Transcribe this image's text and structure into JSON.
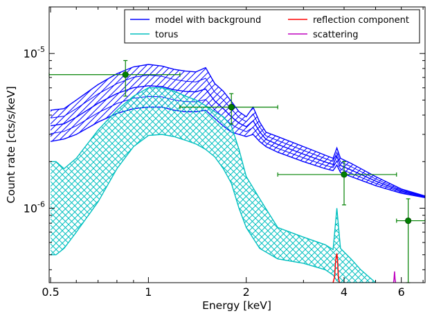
{
  "chart_data": {
    "type": "line",
    "xlabel": "Energy [keV]",
    "ylabel": "Count rate [cts/s/keV]",
    "xscale": "log",
    "yscale": "log",
    "xlim": [
      0.495,
      7.1
    ],
    "ylim": [
      3.3e-07,
      2e-05
    ],
    "x_ticks": [
      {
        "value": 0.5,
        "label": "0.5"
      },
      {
        "value": 1,
        "label": "1"
      },
      {
        "value": 2,
        "label": "2"
      },
      {
        "value": 4,
        "label": "4"
      },
      {
        "value": 6,
        "label": "6"
      }
    ],
    "y_ticks": [
      {
        "value": 1e-06,
        "base": "10",
        "exp": "-6"
      },
      {
        "value": 1e-05,
        "base": "10",
        "exp": "-5"
      }
    ],
    "legend": {
      "position": "top-right",
      "columns": 2,
      "entries": [
        {
          "label": "model with background",
          "color": "#0000ff"
        },
        {
          "label": "reflection component",
          "color": "#ff0000"
        },
        {
          "label": "torus",
          "color": "#00bfbf"
        },
        {
          "label": "scattering",
          "color": "#bf00bf"
        }
      ]
    },
    "series": [
      {
        "name": "model with background",
        "color": "#0000ff",
        "band": {
          "x": [
            0.5,
            0.55,
            0.6,
            0.7,
            0.8,
            0.9,
            1.0,
            1.1,
            1.2,
            1.3,
            1.4,
            1.5,
            1.6,
            1.7,
            1.8,
            1.9,
            2.0,
            2.1,
            2.2,
            2.3,
            2.5,
            3.0,
            3.5,
            3.7,
            3.8,
            3.9,
            4.2,
            5.0,
            6.0,
            7.1
          ],
          "upper": [
            4.3e-06,
            4.4e-06,
            5e-06,
            6.3e-06,
            7.4e-06,
            8.2e-06,
            8.5e-06,
            8.3e-06,
            7.9e-06,
            7.7e-06,
            7.6e-06,
            8.1e-06,
            6.4e-06,
            5.7e-06,
            4.9e-06,
            4.2e-06,
            3.9e-06,
            4.5e-06,
            3.6e-06,
            3.1e-06,
            2.9e-06,
            2.5e-06,
            2.2e-06,
            2.1e-06,
            2.45e-06,
            2.1e-06,
            1.95e-06,
            1.6e-06,
            1.33e-06,
            1.2e-06
          ],
          "lower": [
            2.7e-06,
            2.8e-06,
            3e-06,
            3.6e-06,
            4.1e-06,
            4.4e-06,
            4.5e-06,
            4.5e-06,
            4.3e-06,
            4.2e-06,
            4.2e-06,
            4.3e-06,
            3.8e-06,
            3.4e-06,
            3.1e-06,
            3e-06,
            2.9e-06,
            3e-06,
            2.7e-06,
            2.5e-06,
            2.3e-06,
            2e-06,
            1.8e-06,
            1.75e-06,
            1.9e-06,
            1.7e-06,
            1.6e-06,
            1.4e-06,
            1.25e-06,
            1.17e-06
          ]
        }
      },
      {
        "name": "torus",
        "color": "#00bfbf",
        "band": {
          "x": [
            0.5,
            0.52,
            0.55,
            0.6,
            0.7,
            0.8,
            0.9,
            1.0,
            1.1,
            1.2,
            1.3,
            1.4,
            1.5,
            1.6,
            1.7,
            1.8,
            1.9,
            2.0,
            2.2,
            2.5,
            3.0,
            3.5,
            3.7,
            3.8,
            3.9,
            4.2,
            4.5,
            5.0
          ],
          "upper": [
            2e-06,
            2e-06,
            1.8e-06,
            2.1e-06,
            3.2e-06,
            4.3e-06,
            5.3e-06,
            6e-06,
            6e-06,
            5.7e-06,
            5.3e-06,
            5e-06,
            4.6e-06,
            4.2e-06,
            3.9e-06,
            3.4e-06,
            2.4e-06,
            1.6e-06,
            1.15e-06,
            7.5e-07,
            6.5e-07,
            5.8e-07,
            5.4e-07,
            1e-06,
            5.5e-07,
            4.7e-07,
            4e-07,
            3.3e-07
          ],
          "lower": [
            5e-07,
            5e-07,
            5.5e-07,
            7e-07,
            1.1e-06,
            1.8e-06,
            2.5e-06,
            2.95e-06,
            3e-06,
            2.9e-06,
            2.75e-06,
            2.6e-06,
            2.4e-06,
            2.15e-06,
            1.8e-06,
            1.45e-06,
            1e-06,
            7.5e-07,
            5.5e-07,
            4.7e-07,
            4.4e-07,
            4e-07,
            3.7e-07,
            3.4e-07,
            3.3e-07,
            3.3e-07,
            3.3e-07,
            3.3e-07
          ]
        }
      },
      {
        "name": "reflection component",
        "color": "#ff0000",
        "x": [
          3.7,
          3.74,
          3.77,
          3.8,
          3.82,
          3.84,
          3.87
        ],
        "y": [
          3.3e-07,
          3.6e-07,
          4.6e-07,
          5.1e-07,
          4.6e-07,
          3.6e-07,
          3.3e-07
        ]
      },
      {
        "name": "scattering",
        "color": "#bf00bf",
        "x": [
          5.68,
          5.7,
          5.72,
          5.74,
          5.76
        ],
        "y": [
          3.3e-07,
          3.5e-07,
          3.9e-07,
          3.5e-07,
          3.3e-07
        ]
      }
    ],
    "data_points": {
      "color": "#008000",
      "points": [
        {
          "x": 0.85,
          "y": 7.3e-06,
          "xlo": 0.495,
          "xhi": 1.25,
          "ylo": 5.3e-06,
          "yhi": 9e-06
        },
        {
          "x": 1.8,
          "y": 4.5e-06,
          "xlo": 1.25,
          "xhi": 2.5,
          "ylo": 3.5e-06,
          "yhi": 5.5e-06
        },
        {
          "x": 4.0,
          "y": 1.65e-06,
          "xlo": 2.5,
          "xhi": 5.8,
          "ylo": 1.05e-06,
          "yhi": 2e-06
        },
        {
          "x": 6.3,
          "y": 8.3e-07,
          "xlo": 5.8,
          "xhi": 7.1,
          "ylo": 3.3e-07,
          "yhi": 1.15e-06
        }
      ]
    }
  }
}
